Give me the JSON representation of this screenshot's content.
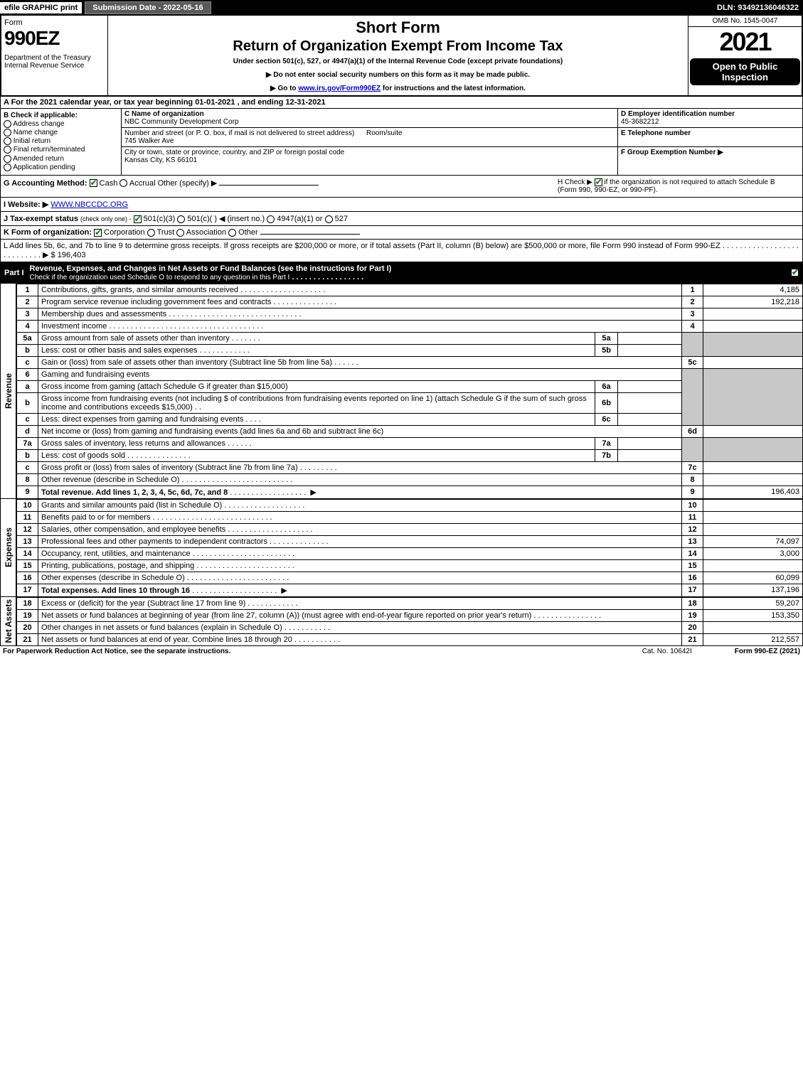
{
  "top": {
    "efile": "efile GRAPHIC print",
    "submission": "Submission Date - 2022-05-16",
    "dln": "DLN: 93492136046322"
  },
  "header": {
    "form_word": "Form",
    "form_num": "990EZ",
    "dept": "Department of the Treasury\nInternal Revenue Service",
    "short": "Short Form",
    "return_title": "Return of Organization Exempt From Income Tax",
    "under": "Under section 501(c), 527, or 4947(a)(1) of the Internal Revenue Code (except private foundations)",
    "instr1": "▶ Do not enter social security numbers on this form as it may be made public.",
    "instr2_pre": "▶ Go to ",
    "instr2_link": "www.irs.gov/Form990EZ",
    "instr2_post": " for instructions and the latest information.",
    "omb": "OMB No. 1545-0047",
    "year": "2021",
    "open": "Open to Public Inspection"
  },
  "a": "A  For the 2021 calendar year, or tax year beginning 01-01-2021 , and ending 12-31-2021",
  "b": {
    "title": "B  Check if applicable:",
    "addr": "Address change",
    "name": "Name change",
    "init": "Initial return",
    "final": "Final return/terminated",
    "amend": "Amended return",
    "app": "Application pending"
  },
  "c": {
    "name_lbl": "C Name of organization",
    "name_val": "NBC Community Development Corp",
    "street_lbl": "Number and street (or P. O. box, if mail is not delivered to street address)",
    "room_lbl": "Room/suite",
    "street_val": "745 Walker Ave",
    "city_lbl": "City or town, state or province, country, and ZIP or foreign postal code",
    "city_val": "Kansas City, KS   66101"
  },
  "d": {
    "ein_lbl": "D Employer identification number",
    "ein_val": "45-3682212",
    "tel_lbl": "E Telephone number",
    "grp_lbl": "F Group Exemption Number   ▶"
  },
  "g": {
    "label": "G Accounting Method:",
    "cash": "Cash",
    "accrual": "Accrual",
    "other": "Other (specify) ▶"
  },
  "h": {
    "text1": "H  Check ▶ ",
    "text2": " if the organization is not required to attach Schedule B",
    "text3": "(Form 990, 990-EZ, or 990-PF)."
  },
  "i": {
    "label": "I Website: ▶",
    "value": "WWW.NBCCDC.ORG"
  },
  "j": {
    "label": "J Tax-exempt status",
    "sub": "(check only one) -",
    "opt1": "501(c)(3)",
    "opt2": "501(c)(  ) ◀ (insert no.)",
    "opt3": "4947(a)(1) or",
    "opt4": "527"
  },
  "k": {
    "label": "K Form of organization:",
    "corp": "Corporation",
    "trust": "Trust",
    "assoc": "Association",
    "other": "Other"
  },
  "l": {
    "text": "L Add lines 5b, 6c, and 7b to line 9 to determine gross receipts. If gross receipts are $200,000 or more, or if total assets (Part II, column (B) below) are $500,000 or more, file Form 990 instead of Form 990-EZ",
    "amount": "▶ $ 196,403"
  },
  "part1": {
    "label": "Part I",
    "title": "Revenue, Expenses, and Changes in Net Assets or Fund Balances (see the instructions for Part I)",
    "sub": "Check if the organization used Schedule O to respond to any question in this Part I"
  },
  "sides": {
    "revenue": "Revenue",
    "expenses": "Expenses",
    "netassets": "Net Assets"
  },
  "lines": {
    "l1": {
      "n": "1",
      "d": "Contributions, gifts, grants, and similar amounts received",
      "rn": "1",
      "amt": "4,185"
    },
    "l2": {
      "n": "2",
      "d": "Program service revenue including government fees and contracts",
      "rn": "2",
      "amt": "192,218"
    },
    "l3": {
      "n": "3",
      "d": "Membership dues and assessments",
      "rn": "3",
      "amt": ""
    },
    "l4": {
      "n": "4",
      "d": "Investment income",
      "rn": "4",
      "amt": ""
    },
    "l5a": {
      "n": "5a",
      "d": "Gross amount from sale of assets other than inventory",
      "sub": "5a"
    },
    "l5b": {
      "n": "b",
      "d": "Less: cost or other basis and sales expenses",
      "sub": "5b"
    },
    "l5c": {
      "n": "c",
      "d": "Gain or (loss) from sale of assets other than inventory (Subtract line 5b from line 5a)",
      "rn": "5c",
      "amt": ""
    },
    "l6": {
      "n": "6",
      "d": "Gaming and fundraising events"
    },
    "l6a": {
      "n": "a",
      "d": "Gross income from gaming (attach Schedule G if greater than $15,000)",
      "sub": "6a"
    },
    "l6b": {
      "n": "b",
      "d": "Gross income from fundraising events (not including $                       of contributions from fundraising events reported on line 1) (attach Schedule G if the sum of such gross income and contributions exceeds $15,000)",
      "sub": "6b"
    },
    "l6c": {
      "n": "c",
      "d": "Less: direct expenses from gaming and fundraising events",
      "sub": "6c"
    },
    "l6d": {
      "n": "d",
      "d": "Net income or (loss) from gaming and fundraising events (add lines 6a and 6b and subtract line 6c)",
      "rn": "6d",
      "amt": ""
    },
    "l7a": {
      "n": "7a",
      "d": "Gross sales of inventory, less returns and allowances",
      "sub": "7a"
    },
    "l7b": {
      "n": "b",
      "d": "Less: cost of goods sold",
      "sub": "7b"
    },
    "l7c": {
      "n": "c",
      "d": "Gross profit or (loss) from sales of inventory (Subtract line 7b from line 7a)",
      "rn": "7c",
      "amt": ""
    },
    "l8": {
      "n": "8",
      "d": "Other revenue (describe in Schedule O)",
      "rn": "8",
      "amt": ""
    },
    "l9": {
      "n": "9",
      "d": "Total revenue. Add lines 1, 2, 3, 4, 5c, 6d, 7c, and 8",
      "rn": "9",
      "amt": "196,403",
      "arrow": "▶"
    },
    "l10": {
      "n": "10",
      "d": "Grants and similar amounts paid (list in Schedule O)",
      "rn": "10",
      "amt": ""
    },
    "l11": {
      "n": "11",
      "d": "Benefits paid to or for members",
      "rn": "11",
      "amt": ""
    },
    "l12": {
      "n": "12",
      "d": "Salaries, other compensation, and employee benefits",
      "rn": "12",
      "amt": ""
    },
    "l13": {
      "n": "13",
      "d": "Professional fees and other payments to independent contractors",
      "rn": "13",
      "amt": "74,097"
    },
    "l14": {
      "n": "14",
      "d": "Occupancy, rent, utilities, and maintenance",
      "rn": "14",
      "amt": "3,000"
    },
    "l15": {
      "n": "15",
      "d": "Printing, publications, postage, and shipping",
      "rn": "15",
      "amt": ""
    },
    "l16": {
      "n": "16",
      "d": "Other expenses (describe in Schedule O)",
      "rn": "16",
      "amt": "60,099"
    },
    "l17": {
      "n": "17",
      "d": "Total expenses. Add lines 10 through 16",
      "rn": "17",
      "amt": "137,196",
      "arrow": "▶"
    },
    "l18": {
      "n": "18",
      "d": "Excess or (deficit) for the year (Subtract line 17 from line 9)",
      "rn": "18",
      "amt": "59,207"
    },
    "l19": {
      "n": "19",
      "d": "Net assets or fund balances at beginning of year (from line 27, column (A)) (must agree with end-of-year figure reported on prior year's return)",
      "rn": "19",
      "amt": "153,350"
    },
    "l20": {
      "n": "20",
      "d": "Other changes in net assets or fund balances (explain in Schedule O)",
      "rn": "20",
      "amt": ""
    },
    "l21": {
      "n": "21",
      "d": "Net assets or fund balances at end of year. Combine lines 18 through 20",
      "rn": "21",
      "amt": "212,557"
    }
  },
  "footer": {
    "left": "For Paperwork Reduction Act Notice, see the separate instructions.",
    "cat": "Cat. No. 10642I",
    "right": "Form 990-EZ (2021)"
  }
}
